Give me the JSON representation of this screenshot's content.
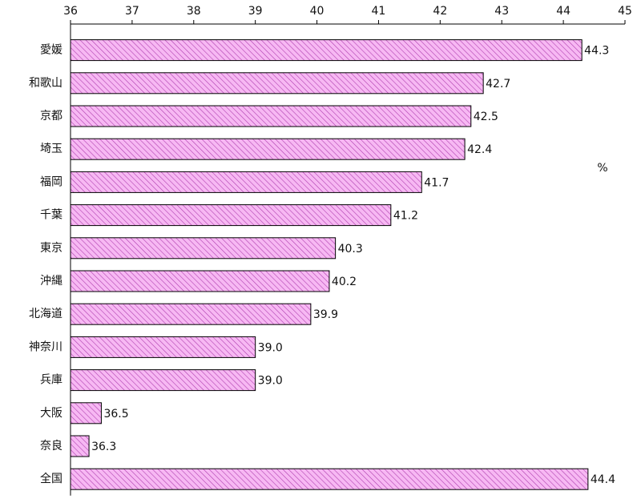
{
  "chart_data": {
    "type": "bar",
    "orientation": "horizontal",
    "categories": [
      "愛媛",
      "和歌山",
      "京都",
      "埼玉",
      "福岡",
      "千葉",
      "東京",
      "沖縄",
      "北海道",
      "神奈川",
      "兵庫",
      "大阪",
      "奈良",
      "全国"
    ],
    "values": [
      44.3,
      42.7,
      42.5,
      42.4,
      41.7,
      41.2,
      40.3,
      40.2,
      39.9,
      39.0,
      39.0,
      36.5,
      36.3,
      44.4
    ],
    "value_labels": [
      "44.3",
      "42.7",
      "42.5",
      "42.4",
      "41.7",
      "41.2",
      "40.3",
      "40.2",
      "39.9",
      "39.0",
      "39.0",
      "36.5",
      "36.3",
      "44.4"
    ],
    "color": "#f7b8f3",
    "xlim": [
      36,
      45
    ],
    "xticks": [
      36,
      37,
      38,
      39,
      40,
      41,
      42,
      43,
      44,
      45
    ],
    "annotation": "%",
    "grid": false
  }
}
